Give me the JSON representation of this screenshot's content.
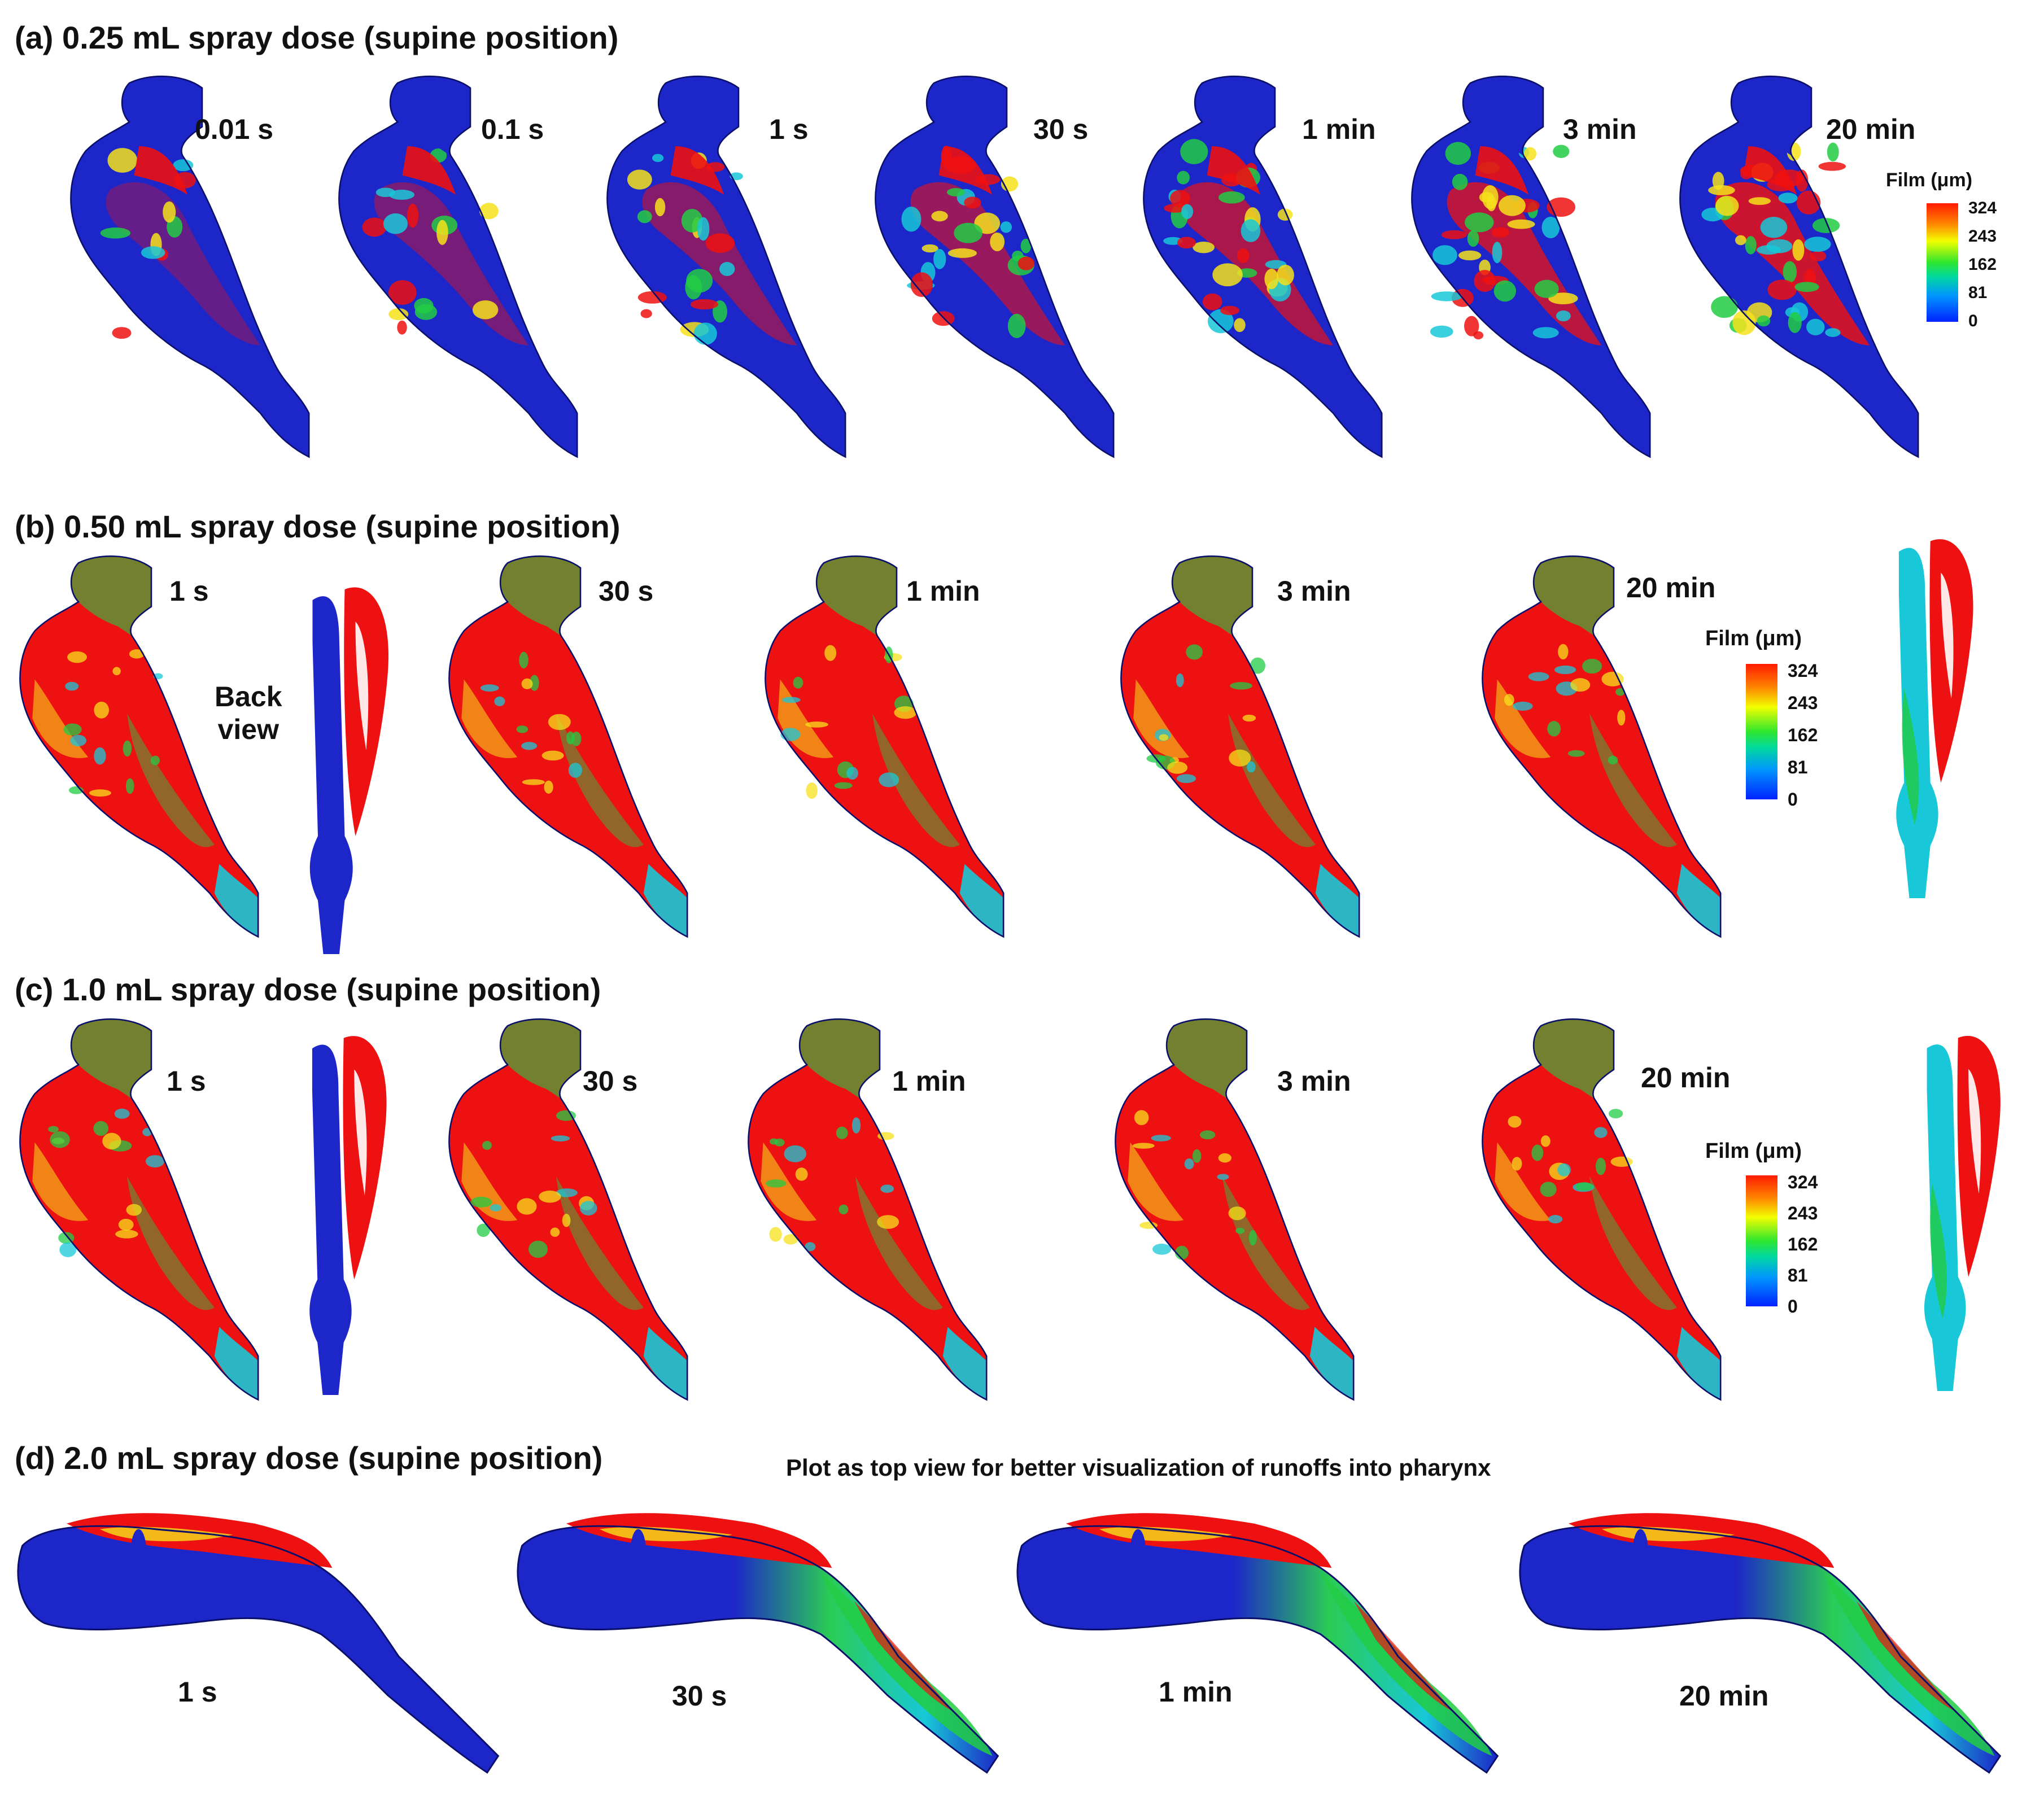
{
  "sections": {
    "a": "(a) 0.25 mL spray dose (supine position)",
    "b": "(b) 0.50 mL spray dose (supine position)",
    "c": "(c) 1.0 mL spray dose (supine position)",
    "d": "(d) 2.0 mL spray dose (supine position)"
  },
  "times_a": [
    "0.01 s",
    "0.1 s",
    "1 s",
    "30 s",
    "1 min",
    "3 min",
    "20 min"
  ],
  "times_b": [
    "1 s",
    "30 s",
    "1 min",
    "3 min",
    "20 min"
  ],
  "times_c": [
    "1 s",
    "30 s",
    "1 min",
    "3 min",
    "20 min"
  ],
  "times_d": [
    "1 s",
    "30 s",
    "1 min",
    "20 min"
  ],
  "back_view": "Back\nview",
  "note_d": "Plot as top view for better visualization of runoffs into pharynx",
  "legend": {
    "title": "Film (μm)",
    "ticks": [
      "324",
      "243",
      "162",
      "81",
      "0"
    ]
  },
  "colors": {
    "red": "#ee1111",
    "yellow": "#f5e21b",
    "green": "#22cc44",
    "cyan": "#18c8d8",
    "blue": "#1d26c9"
  }
}
